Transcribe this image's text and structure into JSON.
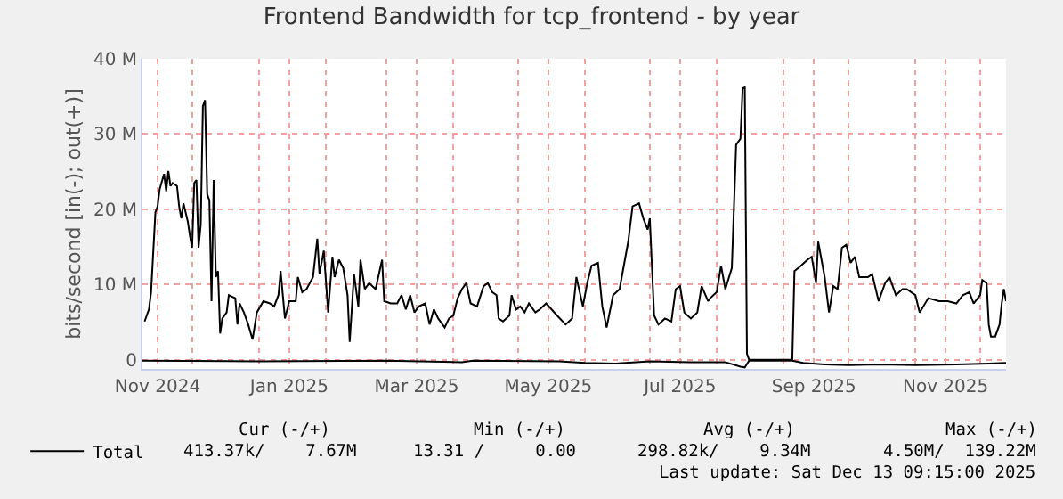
{
  "chart_data": {
    "type": "line",
    "title": "Frontend Bandwidth for tcp_frontend - by year",
    "ylabel": "bits/second [in(-); out(+)]",
    "xlim": [
      "2024-11-08",
      "2025-12-13"
    ],
    "xticks": [
      {
        "value": "2024-11-15",
        "label": "Nov 2024"
      },
      {
        "value": "2024-12-01",
        "label": null
      },
      {
        "value": "2025-01-01",
        "label": null
      },
      {
        "value": "2025-01-15",
        "label": "Jan 2025"
      },
      {
        "value": "2025-02-01",
        "label": null
      },
      {
        "value": "2025-03-01",
        "label": null
      },
      {
        "value": "2025-03-15",
        "label": "Mar 2025"
      },
      {
        "value": "2025-04-01",
        "label": null
      },
      {
        "value": "2025-05-01",
        "label": null
      },
      {
        "value": "2025-05-15",
        "label": "May 2025"
      },
      {
        "value": "2025-06-01",
        "label": null
      },
      {
        "value": "2025-07-01",
        "label": null
      },
      {
        "value": "2025-07-15",
        "label": "Jul 2025"
      },
      {
        "value": "2025-08-01",
        "label": null
      },
      {
        "value": "2025-09-01",
        "label": null
      },
      {
        "value": "2025-09-15",
        "label": "Sep 2025"
      },
      {
        "value": "2025-10-01",
        "label": null
      },
      {
        "value": "2025-11-01",
        "label": null
      },
      {
        "value": "2025-11-15",
        "label": "Nov 2025"
      },
      {
        "value": "2025-12-01",
        "label": null
      }
    ],
    "ylim": [
      -1.2,
      40
    ],
    "yticks": [
      0,
      {
        "value": 10,
        "label": "10 M"
      },
      {
        "value": 20,
        "label": "20 M"
      },
      {
        "value": 30,
        "label": "30 M"
      },
      {
        "value": 40,
        "label": "40 M"
      }
    ],
    "grid": true,
    "legend": "bottom left",
    "line_style": "solid",
    "series": [
      {
        "name": "Total",
        "color": "#000000",
        "x": [
          "2024-11-09",
          "2024-11-11",
          "2024-11-12",
          "2024-11-14",
          "2024-11-15",
          "2024-11-16",
          "2024-11-18",
          "2024-11-19",
          "2024-11-20",
          "2024-11-21",
          "2024-11-22",
          "2024-11-24",
          "2024-11-25",
          "2024-11-26",
          "2024-11-27",
          "2024-11-29",
          "2024-11-30",
          "2024-12-01",
          "2024-12-02",
          "2024-12-03",
          "2024-12-04",
          "2024-12-05",
          "2024-12-06",
          "2024-12-07",
          "2024-12-08",
          "2024-12-09",
          "2024-12-10",
          "2024-12-11",
          "2024-12-12",
          "2024-12-13",
          "2024-12-14",
          "2024-12-15",
          "2024-12-17",
          "2024-12-18",
          "2024-12-21",
          "2024-12-22",
          "2024-12-23",
          "2024-12-25",
          "2024-12-27",
          "2024-12-29",
          "2024-12-31",
          "2025-01-03",
          "2025-01-06",
          "2025-01-08",
          "2025-01-10",
          "2025-01-11",
          "2025-01-13",
          "2025-01-15",
          "2025-01-18",
          "2025-01-19",
          "2025-01-21",
          "2025-01-23",
          "2025-01-26",
          "2025-01-28",
          "2025-01-29",
          "2025-01-31",
          "2025-02-02",
          "2025-02-04",
          "2025-02-05",
          "2025-02-07",
          "2025-02-09",
          "2025-02-11",
          "2025-02-12",
          "2025-02-14",
          "2025-02-16",
          "2025-02-17",
          "2025-02-19",
          "2025-02-21",
          "2025-02-24",
          "2025-02-27",
          "2025-02-28",
          "2025-03-03",
          "2025-03-06",
          "2025-03-08",
          "2025-03-10",
          "2025-03-12",
          "2025-03-14",
          "2025-03-16",
          "2025-03-19",
          "2025-03-21",
          "2025-03-23",
          "2025-03-25",
          "2025-03-28",
          "2025-03-30",
          "2025-04-01",
          "2025-04-03",
          "2025-04-05",
          "2025-04-07",
          "2025-04-09",
          "2025-04-12",
          "2025-04-15",
          "2025-04-17",
          "2025-04-19",
          "2025-04-21",
          "2025-04-22",
          "2025-04-24",
          "2025-04-27",
          "2025-04-28",
          "2025-04-30",
          "2025-05-02",
          "2025-05-04",
          "2025-05-06",
          "2025-05-09",
          "2025-05-11",
          "2025-05-14",
          "2025-05-19",
          "2025-05-23",
          "2025-05-26",
          "2025-05-28",
          "2025-05-31",
          "2025-06-02",
          "2025-06-04",
          "2025-06-07",
          "2025-06-09",
          "2025-06-11",
          "2025-06-14",
          "2025-06-17",
          "2025-06-18",
          "2025-06-21",
          "2025-06-23",
          "2025-06-26",
          "2025-06-28",
          "2025-06-30",
          "2025-07-01",
          "2025-07-03",
          "2025-07-05",
          "2025-07-08",
          "2025-07-11",
          "2025-07-13",
          "2025-07-15",
          "2025-07-17",
          "2025-07-20",
          "2025-07-23",
          "2025-07-25",
          "2025-07-28",
          "2025-07-29",
          "2025-08-01",
          "2025-08-03",
          "2025-08-05",
          "2025-08-08",
          "2025-08-10",
          "2025-08-12",
          "2025-08-13",
          "2025-08-14",
          "2025-08-15",
          "2025-08-16",
          "2025-09-05",
          "2025-09-06",
          "2025-09-09",
          "2025-09-12",
          "2025-09-14",
          "2025-09-16",
          "2025-09-17",
          "2025-09-20",
          "2025-09-22",
          "2025-09-24",
          "2025-09-26",
          "2025-09-28",
          "2025-09-30",
          "2025-10-02",
          "2025-10-04",
          "2025-10-06",
          "2025-10-10",
          "2025-10-12",
          "2025-10-15",
          "2025-10-18",
          "2025-10-20",
          "2025-10-23",
          "2025-10-26",
          "2025-10-28",
          "2025-11-01",
          "2025-11-03",
          "2025-11-07",
          "2025-11-12",
          "2025-11-16",
          "2025-11-20",
          "2025-11-23",
          "2025-11-26",
          "2025-11-28",
          "2025-12-01",
          "2025-12-02",
          "2025-12-04",
          "2025-12-05",
          "2025-12-06",
          "2025-12-08",
          "2025-12-10",
          "2025-12-11",
          "2025-12-12",
          "2025-12-13"
        ],
        "values": [
          5.1,
          6.7,
          9.0,
          19.6,
          20.4,
          22.7,
          24.7,
          22.4,
          25.1,
          23.1,
          23.5,
          23.1,
          20.4,
          18.8,
          20.8,
          18.4,
          16.5,
          14.9,
          23.5,
          23.9,
          14.9,
          18.0,
          33.7,
          34.5,
          22.0,
          21.2,
          7.8,
          23.9,
          11.0,
          11.8,
          3.5,
          5.5,
          6.3,
          8.6,
          8.2,
          4.7,
          7.5,
          6.3,
          4.7,
          2.7,
          6.3,
          7.8,
          7.5,
          7.1,
          8.6,
          11.8,
          5.5,
          7.8,
          7.8,
          11.0,
          9.0,
          9.4,
          11.0,
          16.1,
          11.4,
          14.5,
          6.3,
          13.7,
          11.0,
          13.3,
          12.2,
          8.6,
          2.4,
          11.4,
          7.1,
          13.3,
          9.4,
          10.2,
          9.4,
          13.3,
          7.8,
          7.5,
          7.5,
          8.6,
          6.7,
          8.6,
          6.3,
          7.1,
          7.5,
          4.7,
          6.7,
          5.5,
          4.3,
          5.5,
          5.9,
          8.2,
          9.4,
          10.2,
          7.5,
          7.1,
          9.8,
          10.2,
          9.0,
          8.6,
          5.5,
          5.1,
          5.9,
          8.6,
          6.7,
          7.1,
          6.3,
          7.5,
          6.3,
          6.7,
          7.5,
          5.9,
          4.7,
          5.5,
          11.0,
          7.1,
          10.2,
          12.5,
          12.9,
          7.1,
          4.3,
          8.6,
          9.4,
          11.0,
          15.7,
          20.4,
          20.8,
          18.8,
          17.3,
          18.8,
          5.9,
          4.7,
          5.5,
          5.1,
          9.4,
          9.8,
          6.3,
          5.5,
          6.3,
          9.8,
          7.8,
          8.2,
          9.0,
          12.5,
          9.4,
          12.2,
          28.6,
          29.4,
          36.1,
          36.2,
          0.8,
          0,
          0,
          11.8,
          12.5,
          13.3,
          13.7,
          10.2,
          15.7,
          11.0,
          6.3,
          9.8,
          9.4,
          14.9,
          15.3,
          12.9,
          13.7,
          11.0,
          11.0,
          11.4,
          7.8,
          10.2,
          11.0,
          8.6,
          9.4,
          9.4,
          8.6,
          6.3,
          8.2,
          7.8,
          7.8,
          7.5,
          8.6,
          9.0,
          7.5,
          8.6,
          10.6,
          10.2,
          4.7,
          3.1,
          3.1,
          4.7,
          7.5,
          9.4,
          7.8
        ]
      },
      {
        "color": "#000000",
        "x": [
          "2024-11-08",
          "2025-01-01",
          "2025-03-01",
          "2025-04-05",
          "2025-04-10",
          "2025-05-20",
          "2025-06-01",
          "2025-06-15",
          "2025-07-01",
          "2025-07-20",
          "2025-08-05",
          "2025-08-12",
          "2025-08-14",
          "2025-08-16",
          "2025-09-05",
          "2025-09-10",
          "2025-09-20",
          "2025-10-01",
          "2025-10-15",
          "2025-11-01",
          "2025-11-20",
          "2025-12-05",
          "2025-12-13"
        ],
        "values": [
          -0.1,
          -0.2,
          -0.1,
          -0.3,
          -0.1,
          -0.2,
          -0.4,
          -0.5,
          -0.2,
          -0.3,
          -0.3,
          -0.9,
          -1.0,
          -0.1,
          -0.1,
          -0.4,
          -0.6,
          -0.7,
          -0.6,
          -0.7,
          -0.6,
          -0.5,
          -0.4
        ]
      }
    ],
    "annotations": [
      "Cur (-/+)",
      "Min (-/+)",
      "Avg (-/+)",
      "Max (-/+)",
      "413.37k/    7.67M",
      "13.31 /     0.00",
      "298.82k/    9.34M",
      "4.50M/  139.22M",
      "Last update: Sat Dec 13 09:15:00 2025"
    ]
  }
}
